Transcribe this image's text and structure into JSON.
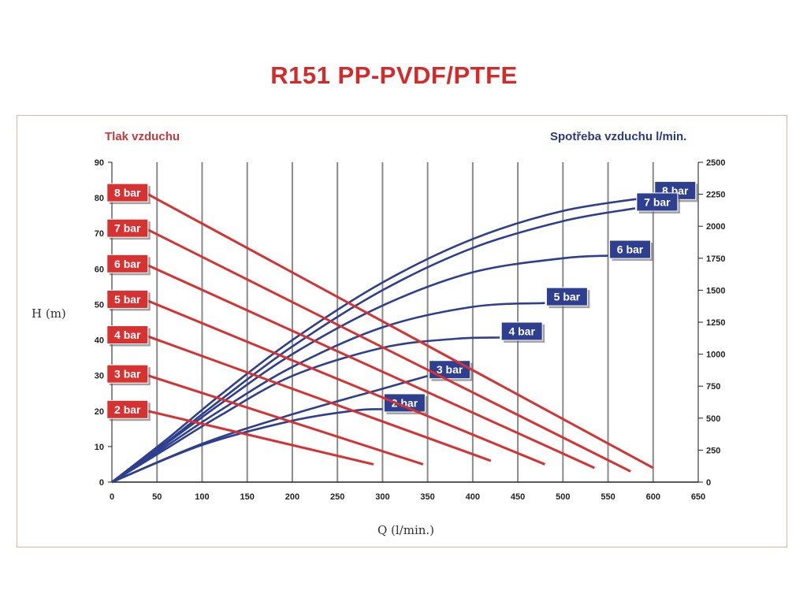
{
  "title": "R151 PP-PVDF/PTFE",
  "colors": {
    "title": "#d42a2a",
    "pressure": "#d63232",
    "air": "#2e3f8f",
    "grid": "#8a8a8a"
  },
  "chart_data": {
    "type": "line",
    "left_title": "Tlak vzduchu",
    "right_title": "Spotřeba vzduchu l/min.",
    "xlabel": "Q (l/min.)",
    "ylabel": "H (m)",
    "xlim": [
      0,
      650
    ],
    "ylim": [
      0,
      90
    ],
    "y2lim": [
      0,
      2500
    ],
    "x_ticks": [
      0,
      50,
      100,
      150,
      200,
      250,
      300,
      350,
      400,
      450,
      500,
      550,
      600,
      650
    ],
    "y_ticks": [
      0,
      10,
      20,
      30,
      40,
      50,
      60,
      70,
      80,
      90
    ],
    "y2_ticks": [
      0,
      250,
      500,
      750,
      1000,
      1250,
      1500,
      1750,
      2000,
      2250,
      2500
    ],
    "grid": true,
    "pressure_series": [
      {
        "name": "8 bar",
        "points": [
          [
            40,
            81
          ],
          [
            600,
            4
          ]
        ]
      },
      {
        "name": "7 bar",
        "points": [
          [
            40,
            71
          ],
          [
            575,
            3
          ]
        ]
      },
      {
        "name": "6 bar",
        "points": [
          [
            40,
            61
          ],
          [
            535,
            4
          ]
        ]
      },
      {
        "name": "5 bar",
        "points": [
          [
            40,
            51
          ],
          [
            480,
            5
          ]
        ]
      },
      {
        "name": "4 bar",
        "points": [
          [
            40,
            41
          ],
          [
            420,
            6
          ]
        ]
      },
      {
        "name": "3 bar",
        "points": [
          [
            40,
            30
          ],
          [
            345,
            5
          ]
        ]
      },
      {
        "name": "2 bar",
        "points": [
          [
            40,
            20
          ],
          [
            290,
            5
          ]
        ]
      }
    ],
    "air_series": [
      {
        "name": "8 bar",
        "points": [
          [
            0,
            0
          ],
          [
            60,
            330
          ],
          [
            120,
            680
          ],
          [
            200,
            1110
          ],
          [
            300,
            1560
          ],
          [
            400,
            1900
          ],
          [
            500,
            2120
          ],
          [
            600,
            2230
          ]
        ]
      },
      {
        "name": "7 bar",
        "points": [
          [
            0,
            0
          ],
          [
            60,
            310
          ],
          [
            120,
            640
          ],
          [
            200,
            1060
          ],
          [
            300,
            1500
          ],
          [
            400,
            1830
          ],
          [
            500,
            2040
          ],
          [
            580,
            2140
          ]
        ]
      },
      {
        "name": "6 bar",
        "points": [
          [
            0,
            0
          ],
          [
            60,
            300
          ],
          [
            120,
            610
          ],
          [
            200,
            1000
          ],
          [
            300,
            1380
          ],
          [
            400,
            1640
          ],
          [
            500,
            1750
          ],
          [
            550,
            1770
          ]
        ]
      },
      {
        "name": "5 bar",
        "points": [
          [
            0,
            0
          ],
          [
            60,
            280
          ],
          [
            120,
            560
          ],
          [
            200,
            900
          ],
          [
            300,
            1210
          ],
          [
            400,
            1370
          ],
          [
            480,
            1400
          ]
        ]
      },
      {
        "name": "4 bar",
        "points": [
          [
            0,
            0
          ],
          [
            60,
            260
          ],
          [
            120,
            520
          ],
          [
            200,
            830
          ],
          [
            300,
            1050
          ],
          [
            380,
            1120
          ],
          [
            430,
            1130
          ]
        ]
      },
      {
        "name": "3 bar",
        "points": [
          [
            0,
            0
          ],
          [
            100,
            300
          ],
          [
            200,
            530
          ],
          [
            300,
            730
          ],
          [
            350,
            830
          ]
        ]
      },
      {
        "name": "2 bar",
        "points": [
          [
            0,
            0
          ],
          [
            100,
            290
          ],
          [
            200,
            480
          ],
          [
            270,
            560
          ],
          [
            300,
            570
          ]
        ]
      }
    ]
  }
}
